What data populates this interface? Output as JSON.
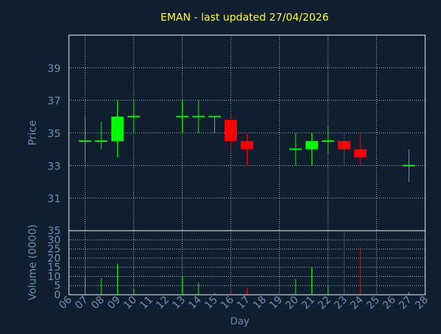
{
  "chart_data": [
    {
      "type": "candlestick",
      "title": "EMAN - last updated 27/04/2026",
      "ylabel": "Price",
      "ylim": [
        29,
        41
      ],
      "yticks": [
        31,
        33,
        35,
        37,
        39
      ],
      "grid": true,
      "candles": [
        {
          "day": 7,
          "open": 34.5,
          "high": 36.0,
          "low": 33.2,
          "close": 34.5
        },
        {
          "day": 8,
          "open": 34.5,
          "high": 35.7,
          "low": 34.0,
          "close": 34.5
        },
        {
          "day": 9,
          "open": 34.5,
          "high": 37.0,
          "low": 33.5,
          "close": 36.0
        },
        {
          "day": 10,
          "open": 36.0,
          "high": 37.0,
          "low": 35.0,
          "close": 36.0
        },
        {
          "day": 13,
          "open": 36.0,
          "high": 37.0,
          "low": 35.0,
          "close": 36.0
        },
        {
          "day": 14,
          "open": 36.0,
          "high": 37.0,
          "low": 35.0,
          "close": 36.0
        },
        {
          "day": 15,
          "open": 36.0,
          "high": 36.0,
          "low": 35.0,
          "close": 36.0
        },
        {
          "day": 16,
          "open": 35.8,
          "high": 35.8,
          "low": 34.0,
          "close": 34.5
        },
        {
          "day": 17,
          "open": 34.5,
          "high": 35.0,
          "low": 33.0,
          "close": 34.0
        },
        {
          "day": 20,
          "open": 34.0,
          "high": 35.0,
          "low": 33.0,
          "close": 34.0
        },
        {
          "day": 21,
          "open": 34.0,
          "high": 35.0,
          "low": 33.0,
          "close": 34.5
        },
        {
          "day": 22,
          "open": 34.5,
          "high": 35.4,
          "low": 33.7,
          "close": 34.5
        },
        {
          "day": 23,
          "open": 34.5,
          "high": 35.0,
          "low": 33.0,
          "close": 34.0
        },
        {
          "day": 24,
          "open": 34.0,
          "high": 35.0,
          "low": 33.0,
          "close": 33.5
        },
        {
          "day": 27,
          "open": 33.0,
          "high": 34.0,
          "low": 32.0,
          "close": 33.0
        }
      ]
    },
    {
      "type": "bar",
      "ylabel": "Volume (0000)",
      "xlabel": "Day",
      "ylim": [
        0,
        35
      ],
      "yticks": [
        0,
        5,
        10,
        15,
        20,
        25,
        30,
        35
      ],
      "x_tick_labels": [
        "06",
        "07",
        "08",
        "09",
        "10",
        "11",
        "12",
        "13",
        "14",
        "15",
        "16",
        "17",
        "18",
        "19",
        "20",
        "21",
        "22",
        "23",
        "24",
        "25",
        "26",
        "27",
        "28"
      ],
      "bars": [
        {
          "day": 7,
          "value": 10.5,
          "direction": "up"
        },
        {
          "day": 8,
          "value": 9,
          "direction": "up"
        },
        {
          "day": 9,
          "value": 17,
          "direction": "up"
        },
        {
          "day": 10,
          "value": 3,
          "direction": "up"
        },
        {
          "day": 13,
          "value": 10,
          "direction": "up"
        },
        {
          "day": 14,
          "value": 6.5,
          "direction": "up"
        },
        {
          "day": 15,
          "value": 1,
          "direction": "up"
        },
        {
          "day": 16,
          "value": 2,
          "direction": "down"
        },
        {
          "day": 17,
          "value": 4,
          "direction": "down"
        },
        {
          "day": 20,
          "value": 8.5,
          "direction": "up"
        },
        {
          "day": 21,
          "value": 15,
          "direction": "up"
        },
        {
          "day": 22,
          "value": 5,
          "direction": "up"
        },
        {
          "day": 23,
          "value": 34,
          "direction": "down"
        },
        {
          "day": 24,
          "value": 26,
          "direction": "down"
        },
        {
          "day": 27,
          "value": 1.5,
          "direction": "up"
        }
      ]
    }
  ],
  "colors": {
    "background": "#0f1f30",
    "title": "#ffff00",
    "axis_text": "#6e8fb4",
    "axis_line": "#ffffff",
    "grid": "#ffffff",
    "up": "#00ff00",
    "down": "#ff0000"
  }
}
